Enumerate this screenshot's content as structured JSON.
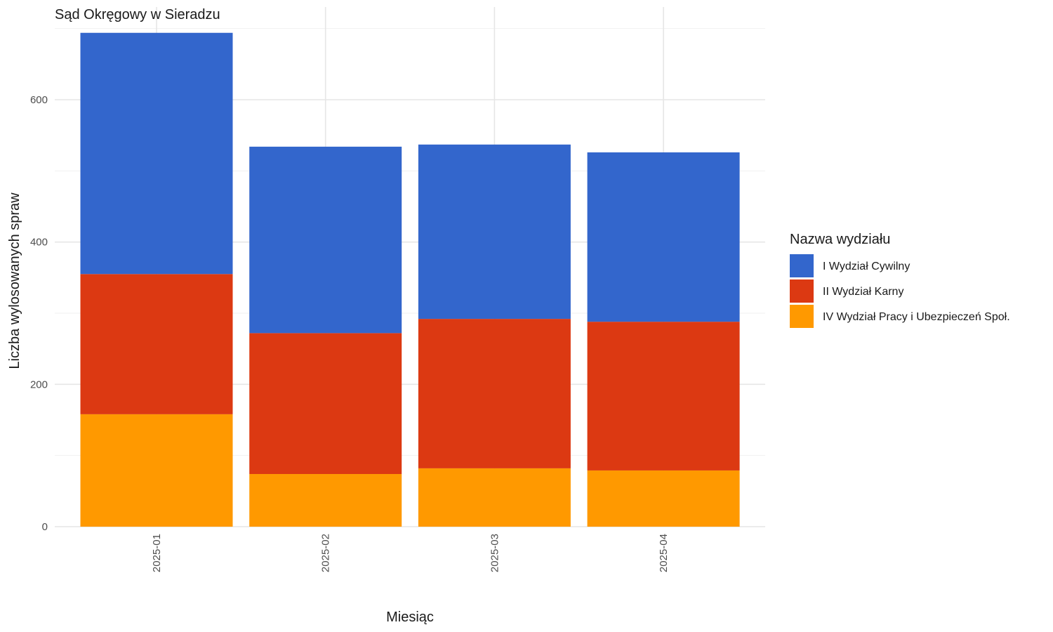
{
  "chart_data": {
    "type": "bar",
    "stacked": true,
    "title": "Sąd Okręgowy w Sieradzu",
    "xlabel": "Miesiąc",
    "ylabel": "Liczba wylosowanych spraw",
    "categories": [
      "2025-01",
      "2025-02",
      "2025-03",
      "2025-04"
    ],
    "ylim": [
      0,
      700
    ],
    "yticks": [
      0,
      200,
      400,
      600
    ],
    "grid": true,
    "legend_title": "Nazwa wydziału",
    "legend_position": "right",
    "series": [
      {
        "name": "IV Wydział Pracy i Ubezpieczeń Społ.",
        "color": "#FF9900",
        "values": [
          158,
          74,
          82,
          79
        ]
      },
      {
        "name": "II Wydział Karny",
        "color": "#DC3912",
        "values": [
          197,
          198,
          210,
          209
        ]
      },
      {
        "name": "I Wydział Cywilny",
        "color": "#3366CC",
        "values": [
          339,
          262,
          245,
          238
        ]
      }
    ],
    "legend_order": [
      2,
      1,
      0
    ]
  }
}
